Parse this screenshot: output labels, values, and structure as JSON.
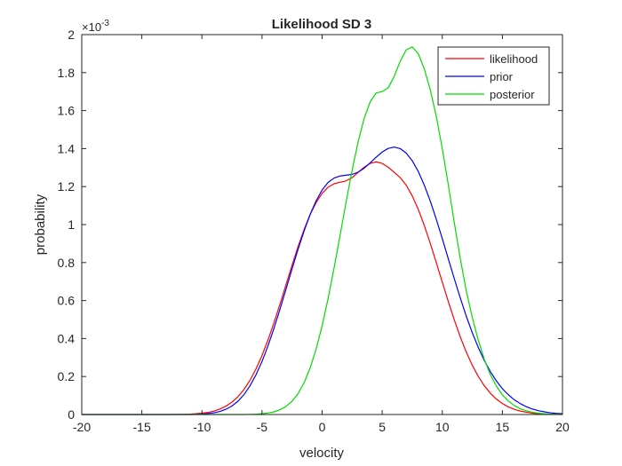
{
  "chart_data": {
    "type": "line",
    "title": "Likelihood SD 3",
    "xlabel": "velocity",
    "ylabel": "probability",
    "xlim": [
      -20,
      20
    ],
    "ylim": [
      0,
      2
    ],
    "y_exponent_label": "×10",
    "y_exponent_power": "-3",
    "x_ticks": [
      "-20",
      "-15",
      "-10",
      "-5",
      "0",
      "5",
      "10",
      "15",
      "20"
    ],
    "y_ticks": [
      "0",
      "0.2",
      "0.4",
      "0.6",
      "0.8",
      "1",
      "1.2",
      "1.4",
      "1.6",
      "1.8",
      "2"
    ],
    "grid": false,
    "legend_position": "top-right",
    "x_step": 0.5,
    "series": [
      {
        "name": "likelihood",
        "color": "#ff0000",
        "y": [
          0.0,
          0.0,
          0.0,
          0.0,
          0.0,
          0.0,
          0.0,
          0.0,
          0.0,
          0.0,
          0.0,
          0.0,
          0.0,
          0.0,
          0.0,
          0.0,
          0.001,
          0.001,
          0.002,
          0.004,
          0.007,
          0.011,
          0.018,
          0.029,
          0.044,
          0.065,
          0.094,
          0.132,
          0.18,
          0.24,
          0.311,
          0.393,
          0.484,
          0.582,
          0.684,
          0.786,
          0.884,
          0.974,
          1.052,
          1.116,
          1.164,
          1.197,
          1.215,
          1.223,
          1.23,
          1.247,
          1.275,
          1.302,
          1.322,
          1.33,
          1.322,
          1.302,
          1.275,
          1.247,
          1.207,
          1.151,
          1.08,
          0.996,
          0.901,
          0.8,
          0.697,
          0.595,
          0.498,
          0.408,
          0.328,
          0.259,
          0.2,
          0.151,
          0.112,
          0.081,
          0.058,
          0.04,
          0.027,
          0.018,
          0.012,
          0.007,
          0.004,
          0.003,
          0.002,
          0.001,
          0.0
        ]
      },
      {
        "name": "prior",
        "color": "#0000ff",
        "y": [
          0.0,
          0.0,
          0.0,
          0.0,
          0.0,
          0.0,
          0.0,
          0.0,
          0.0,
          0.0,
          0.0,
          0.0,
          0.0,
          0.0,
          0.0,
          0.0,
          0.0,
          0.0,
          0.0,
          0.001,
          0.002,
          0.005,
          0.009,
          0.016,
          0.028,
          0.045,
          0.07,
          0.105,
          0.151,
          0.209,
          0.279,
          0.362,
          0.455,
          0.556,
          0.661,
          0.767,
          0.87,
          0.966,
          1.052,
          1.125,
          1.182,
          1.222,
          1.245,
          1.256,
          1.26,
          1.264,
          1.276,
          1.297,
          1.325,
          1.355,
          1.382,
          1.401,
          1.408,
          1.4,
          1.376,
          1.336,
          1.28,
          1.208,
          1.124,
          1.028,
          0.926,
          0.82,
          0.715,
          0.613,
          0.517,
          0.43,
          0.352,
          0.284,
          0.226,
          0.177,
          0.136,
          0.104,
          0.077,
          0.057,
          0.041,
          0.029,
          0.02,
          0.014,
          0.009,
          0.006,
          0.004
        ]
      },
      {
        "name": "posterior",
        "color": "#00dd00",
        "y": [
          0.0,
          0.0,
          0.0,
          0.0,
          0.0,
          0.0,
          0.0,
          0.0,
          0.0,
          0.0,
          0.0,
          0.0,
          0.0,
          0.0,
          0.0,
          0.0,
          0.0,
          0.0,
          0.0,
          0.0,
          0.0,
          0.0,
          0.0,
          0.0,
          0.0,
          0.0,
          0.0,
          0.0,
          0.001,
          0.002,
          0.004,
          0.008,
          0.014,
          0.025,
          0.043,
          0.07,
          0.11,
          0.167,
          0.244,
          0.344,
          0.467,
          0.611,
          0.773,
          0.945,
          1.12,
          1.287,
          1.436,
          1.559,
          1.646,
          1.693,
          1.7,
          1.72,
          1.78,
          1.86,
          1.92,
          1.935,
          1.9,
          1.82,
          1.71,
          1.57,
          1.4,
          1.21,
          1.01,
          0.82,
          0.65,
          0.51,
          0.39,
          0.29,
          0.21,
          0.15,
          0.104,
          0.071,
          0.047,
          0.03,
          0.019,
          0.012,
          0.007,
          0.004,
          0.002,
          0.001,
          0.001
        ]
      }
    ]
  }
}
